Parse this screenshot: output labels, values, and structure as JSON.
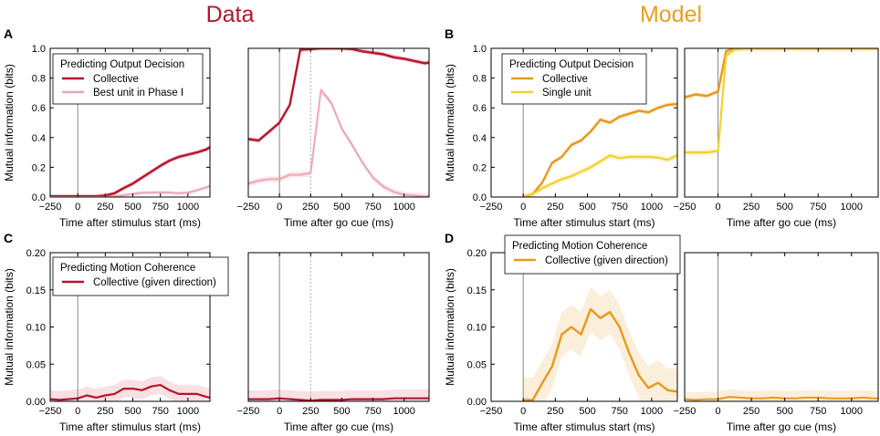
{
  "column_titles": {
    "data": {
      "text": "Data",
      "color": "#b5152b"
    },
    "model": {
      "text": "Model",
      "color": "#e8a020"
    }
  },
  "chart_data": [
    {
      "panel": "A",
      "type": "line",
      "subplot": "stimulus",
      "ylabel": "Mutual information (bits)",
      "xlabel": "Time after stimulus start (ms)",
      "xlim": [
        -250,
        1200
      ],
      "ylim": [
        0,
        1.0
      ],
      "xticks": [
        -250,
        0,
        250,
        500,
        750,
        1000
      ],
      "yticks": [
        0,
        0.2,
        0.4,
        0.6,
        0.8,
        1.0
      ],
      "ytick_labels": [
        "0.0",
        "0.2",
        "0.4",
        "0.6",
        "0.8",
        "1.0"
      ],
      "vlines": [
        0
      ],
      "dashed_vlines": [],
      "legend": {
        "title": "Predicting Output Decision",
        "position": "top-left"
      },
      "series": [
        {
          "name": "Collective",
          "color": "#b5152b",
          "band_color": "#e8a0ac",
          "band": 0.015,
          "lw": 2.4,
          "x": [
            -250,
            -167,
            -83,
            0,
            83,
            167,
            250,
            333,
            417,
            500,
            583,
            667,
            750,
            833,
            917,
            1000,
            1083,
            1167,
            1200
          ],
          "y": [
            0.005,
            0.005,
            0.005,
            0.005,
            0.005,
            0.005,
            0.01,
            0.025,
            0.06,
            0.09,
            0.13,
            0.17,
            0.21,
            0.245,
            0.27,
            0.285,
            0.3,
            0.32,
            0.335
          ]
        },
        {
          "name": "Best unit in Phase I",
          "color": "#eea6b4",
          "band_color": "#f7d3da",
          "band": 0.012,
          "lw": 2.0,
          "x": [
            -250,
            0,
            250,
            333,
            417,
            500,
            583,
            667,
            750,
            833,
            917,
            1000,
            1083,
            1167,
            1200
          ],
          "y": [
            0.0,
            0.0,
            0.0,
            0.005,
            0.012,
            0.02,
            0.028,
            0.03,
            0.03,
            0.03,
            0.025,
            0.03,
            0.045,
            0.065,
            0.075
          ]
        }
      ]
    },
    {
      "panel": "A",
      "type": "line",
      "subplot": "go",
      "xlabel": "Time after go cue (ms)",
      "xlim": [
        -250,
        1200
      ],
      "ylim": [
        0,
        1.0
      ],
      "xticks": [
        -250,
        0,
        250,
        500,
        750,
        1000
      ],
      "yticks": [],
      "vlines": [
        0
      ],
      "dashed_vlines": [
        250
      ],
      "series": [
        {
          "name": "Collective",
          "color": "#b5152b",
          "band_color": "#e8a0ac",
          "band": 0.015,
          "lw": 2.4,
          "x": [
            -250,
            -167,
            -83,
            0,
            83,
            167,
            250,
            333,
            417,
            500,
            583,
            667,
            750,
            833,
            917,
            1000,
            1083,
            1167,
            1200
          ],
          "y": [
            0.39,
            0.38,
            0.44,
            0.5,
            0.62,
            0.99,
            0.995,
            1.0,
            1.0,
            1.0,
            0.995,
            0.98,
            0.97,
            0.96,
            0.94,
            0.93,
            0.915,
            0.9,
            0.905
          ]
        },
        {
          "name": "Best unit in Phase I",
          "color": "#eea6b4",
          "band_color": "#f7d3da",
          "band": 0.02,
          "lw": 2.0,
          "x": [
            -250,
            -167,
            -83,
            0,
            83,
            167,
            250,
            333,
            417,
            500,
            583,
            667,
            750,
            833,
            917,
            1000,
            1083,
            1167,
            1200
          ],
          "y": [
            0.09,
            0.11,
            0.12,
            0.12,
            0.15,
            0.15,
            0.16,
            0.72,
            0.63,
            0.46,
            0.35,
            0.23,
            0.13,
            0.07,
            0.035,
            0.015,
            0.01,
            0.005,
            0.005
          ]
        }
      ]
    },
    {
      "panel": "B",
      "type": "line",
      "subplot": "stimulus",
      "ylabel": "Mutual information (bits)",
      "xlabel": "Time after stimulus start (ms)",
      "xlim": [
        -250,
        1200
      ],
      "ylim": [
        0,
        1.0
      ],
      "xticks": [
        -250,
        0,
        250,
        500,
        750,
        1000
      ],
      "yticks": [
        0,
        0.2,
        0.4,
        0.6,
        0.8,
        1.0
      ],
      "ytick_labels": [
        "0.0",
        "0.2",
        "0.4",
        "0.6",
        "0.8",
        "1.0"
      ],
      "vlines": [
        0
      ],
      "dashed_vlines": [],
      "legend": {
        "title": "Predicting Output Decision",
        "position": "top-left"
      },
      "series": [
        {
          "name": "Collective",
          "color": "#e8981e",
          "band_color": "#f6d9a8",
          "band": 0.015,
          "lw": 2.4,
          "x": [
            0,
            75,
            150,
            225,
            300,
            375,
            450,
            525,
            600,
            675,
            750,
            825,
            900,
            975,
            1050,
            1125,
            1200
          ],
          "y": [
            0.0,
            0.02,
            0.1,
            0.23,
            0.27,
            0.35,
            0.38,
            0.44,
            0.52,
            0.5,
            0.54,
            0.56,
            0.58,
            0.57,
            0.6,
            0.62,
            0.625
          ]
        },
        {
          "name": "Single unit",
          "color": "#f2d12a",
          "band_color": "#faedb0",
          "band": 0.02,
          "lw": 2.2,
          "x": [
            0,
            75,
            150,
            225,
            300,
            375,
            450,
            525,
            600,
            675,
            750,
            825,
            900,
            975,
            1050,
            1125,
            1200
          ],
          "y": [
            0.0,
            0.02,
            0.06,
            0.09,
            0.12,
            0.14,
            0.17,
            0.2,
            0.24,
            0.28,
            0.26,
            0.27,
            0.27,
            0.27,
            0.265,
            0.25,
            0.28
          ]
        }
      ]
    },
    {
      "panel": "B",
      "type": "line",
      "subplot": "go",
      "xlabel": "Time after go cue (ms)",
      "xlim": [
        -250,
        1200
      ],
      "ylim": [
        0,
        1.0
      ],
      "xticks": [
        -250,
        0,
        250,
        500,
        750,
        1000
      ],
      "yticks": [],
      "vlines": [
        0
      ],
      "dashed_vlines": [],
      "series": [
        {
          "name": "Collective",
          "color": "#e8981e",
          "band_color": "#f6d9a8",
          "band": 0.015,
          "lw": 2.4,
          "x": [
            -250,
            -167,
            -83,
            0,
            60,
            120,
            200,
            300,
            400,
            500,
            700,
            900,
            1100,
            1200
          ],
          "y": [
            0.67,
            0.69,
            0.68,
            0.71,
            0.98,
            1.0,
            1.0,
            1.0,
            1.0,
            1.0,
            1.0,
            1.0,
            1.0,
            1.0
          ]
        },
        {
          "name": "Single unit",
          "color": "#f2d12a",
          "band_color": "#faedb0",
          "band": 0.02,
          "lw": 2.2,
          "x": [
            -250,
            -167,
            -83,
            0,
            60,
            120,
            200,
            300,
            400,
            500,
            700,
            900,
            1100,
            1200
          ],
          "y": [
            0.3,
            0.3,
            0.3,
            0.31,
            0.95,
            0.99,
            1.0,
            1.0,
            1.0,
            1.0,
            1.0,
            1.0,
            1.0,
            1.0
          ]
        }
      ]
    },
    {
      "panel": "C",
      "type": "line",
      "subplot": "stimulus",
      "ylabel": "Mutual information (bits)",
      "xlabel": "Time after stimulus start (ms)",
      "xlim": [
        -250,
        1200
      ],
      "ylim": [
        0,
        0.2
      ],
      "xticks": [
        -250,
        0,
        250,
        500,
        750,
        1000
      ],
      "yticks": [
        0,
        0.05,
        0.1,
        0.15,
        0.2
      ],
      "ytick_labels": [
        "0.00",
        "0.05",
        "0.10",
        "0.15",
        "0.20"
      ],
      "vlines": [
        0
      ],
      "dashed_vlines": [],
      "legend": {
        "title": "Predicting Motion Coherence",
        "position": "top-left"
      },
      "series": [
        {
          "name": "Collective (given direction)",
          "color": "#b5152b",
          "band_color": "#f2c6ce",
          "band": 0.012,
          "lw": 2.2,
          "x": [
            -250,
            -167,
            -83,
            0,
            83,
            167,
            250,
            333,
            417,
            500,
            583,
            667,
            750,
            833,
            917,
            1000,
            1083,
            1167,
            1200
          ],
          "y": [
            0.003,
            0.002,
            0.003,
            0.004,
            0.008,
            0.005,
            0.008,
            0.01,
            0.017,
            0.017,
            0.015,
            0.02,
            0.022,
            0.015,
            0.01,
            0.01,
            0.01,
            0.006,
            0.005
          ]
        }
      ]
    },
    {
      "panel": "C",
      "type": "line",
      "subplot": "go",
      "xlabel": "Time after go cue (ms)",
      "xlim": [
        -250,
        1200
      ],
      "ylim": [
        0,
        0.2
      ],
      "xticks": [
        -250,
        0,
        250,
        500,
        750,
        1000
      ],
      "yticks": [],
      "vlines": [
        0
      ],
      "dashed_vlines": [
        250
      ],
      "series": [
        {
          "name": "Collective (given direction)",
          "color": "#b5152b",
          "band_color": "#f2c6ce",
          "band": 0.012,
          "lw": 2.2,
          "x": [
            -250,
            -167,
            -83,
            0,
            83,
            167,
            250,
            333,
            417,
            500,
            583,
            667,
            750,
            833,
            917,
            1000,
            1083,
            1167,
            1200
          ],
          "y": [
            0.003,
            0.003,
            0.003,
            0.004,
            0.003,
            0.002,
            0.001,
            0.002,
            0.002,
            0.002,
            0.003,
            0.003,
            0.003,
            0.003,
            0.004,
            0.004,
            0.004,
            0.004,
            0.004
          ]
        }
      ]
    },
    {
      "panel": "D",
      "type": "line",
      "subplot": "stimulus",
      "ylabel": "Mutual information (bits)",
      "xlabel": "Time after stimulus start (ms)",
      "xlim": [
        -250,
        1200
      ],
      "ylim": [
        0,
        0.2
      ],
      "xticks": [
        -250,
        0,
        250,
        500,
        750,
        1000
      ],
      "yticks": [
        0,
        0.05,
        0.1,
        0.15,
        0.2
      ],
      "ytick_labels": [
        "0.00",
        "0.05",
        "0.10",
        "0.15",
        "0.20"
      ],
      "vlines": [
        0
      ],
      "dashed_vlines": [],
      "legend": {
        "title": "Predicting Motion Coherence",
        "position": "top-left"
      },
      "series": [
        {
          "name": "Collective (given direction)",
          "color": "#e8981e",
          "band_color": "#f8e2bd",
          "band": 0.03,
          "lw": 2.4,
          "x": [
            0,
            75,
            150,
            225,
            300,
            375,
            450,
            525,
            600,
            675,
            750,
            825,
            900,
            975,
            1050,
            1125,
            1200
          ],
          "y": [
            0.002,
            0.002,
            0.025,
            0.047,
            0.09,
            0.1,
            0.09,
            0.124,
            0.112,
            0.12,
            0.1,
            0.065,
            0.035,
            0.018,
            0.025,
            0.015,
            0.013
          ]
        }
      ]
    },
    {
      "panel": "D",
      "type": "line",
      "subplot": "go",
      "xlabel": "Time after go cue (ms)",
      "xlim": [
        -250,
        1200
      ],
      "ylim": [
        0,
        0.2
      ],
      "xticks": [
        -250,
        0,
        250,
        500,
        750,
        1000
      ],
      "yticks": [],
      "vlines": [
        0
      ],
      "dashed_vlines": [],
      "series": [
        {
          "name": "Collective (given direction)",
          "color": "#e8981e",
          "band_color": "#f8e2bd",
          "band": 0.01,
          "lw": 2.0,
          "x": [
            -250,
            -167,
            -83,
            0,
            83,
            167,
            250,
            333,
            417,
            500,
            583,
            667,
            750,
            833,
            917,
            1000,
            1083,
            1167,
            1200
          ],
          "y": [
            0.003,
            0.002,
            0.003,
            0.003,
            0.006,
            0.005,
            0.004,
            0.004,
            0.005,
            0.004,
            0.004,
            0.005,
            0.005,
            0.004,
            0.004,
            0.004,
            0.005,
            0.004,
            0.004
          ]
        }
      ]
    }
  ]
}
